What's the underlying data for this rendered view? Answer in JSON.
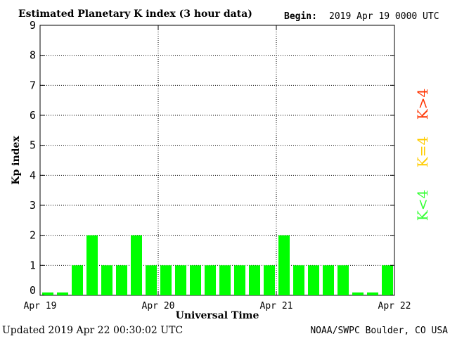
{
  "chart_data": {
    "type": "bar",
    "title": "Estimated Planetary K index (3 hour data)",
    "begin_label": "Begin:",
    "begin_value": "2019 Apr 19 0000 UTC",
    "ylabel": "Kp index",
    "xlabel": "Universal Time",
    "ylim": [
      0,
      9
    ],
    "yticks": [
      "0",
      "1",
      "2",
      "3",
      "4",
      "5",
      "6",
      "7",
      "8",
      "9"
    ],
    "xticks": [
      "Apr 19",
      "Apr 20",
      "Apr 21",
      "Apr 22"
    ],
    "grid": true,
    "bar_color": "#00ff00",
    "values": [
      0,
      0,
      1,
      2,
      1,
      1,
      2,
      1,
      1,
      1,
      1,
      1,
      1,
      1,
      1,
      1,
      2,
      1,
      1,
      1,
      1,
      0,
      0,
      1
    ],
    "legend": [
      {
        "label": "K<4",
        "color": "#33ff33"
      },
      {
        "label": "K=4",
        "color": "#ffcc00"
      },
      {
        "label": "K>4",
        "color": "#ff3300"
      }
    ]
  },
  "footer": {
    "updated": "Updated 2019 Apr 22 00:30:02 UTC",
    "source": "NOAA/SWPC Boulder, CO USA"
  }
}
